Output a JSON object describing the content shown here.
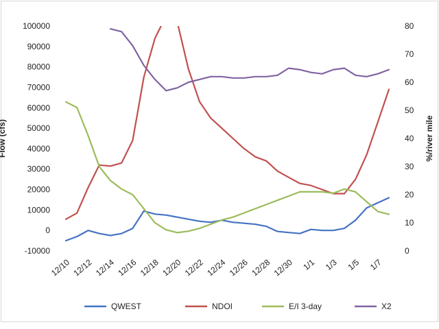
{
  "chart_data": {
    "type": "line",
    "title": "",
    "xlabel": "",
    "ylabel": "Flow (cfs)",
    "y2label": "%/river mile",
    "ylim": [
      -10000,
      100000
    ],
    "y2lim": [
      0,
      80
    ],
    "yticks": [
      "100000",
      "90000",
      "80000",
      "70000",
      "60000",
      "50000",
      "40000",
      "30000",
      "20000",
      "10000",
      "0",
      "-10000"
    ],
    "y2ticks": [
      "80",
      "70",
      "60",
      "50",
      "40",
      "30",
      "20",
      "10",
      "0"
    ],
    "x": [
      "12/10",
      "12/11",
      "12/12",
      "12/13",
      "12/14",
      "12/15",
      "12/16",
      "12/17",
      "12/18",
      "12/19",
      "12/20",
      "12/21",
      "12/22",
      "12/23",
      "12/24",
      "12/25",
      "12/26",
      "12/27",
      "12/28",
      "12/29",
      "12/30",
      "12/31",
      "1/1",
      "1/2",
      "1/3",
      "1/4",
      "1/5",
      "1/6",
      "1/7",
      "1/8"
    ],
    "xtick_labels": [
      "12/10",
      "12/12",
      "12/14",
      "12/16",
      "12/18",
      "12/20",
      "12/22",
      "12/24",
      "12/26",
      "12/28",
      "12/30",
      "1/1",
      "1/3",
      "1/5",
      "1/7"
    ],
    "grid": false,
    "legend": "bottom",
    "series": [
      {
        "name": "QWEST",
        "axis": "left",
        "color": "#4472C4",
        "values": [
          -5000,
          -3000,
          0,
          -1500,
          -2500,
          -1500,
          1000,
          9500,
          8000,
          7500,
          6500,
          5500,
          4500,
          4000,
          5000,
          4000,
          3500,
          3000,
          2000,
          -500,
          -1000,
          -1500,
          500,
          0,
          0,
          1000,
          5000,
          11000,
          13500,
          16000
        ]
      },
      {
        "name": "NDOI",
        "axis": "left",
        "color": "#C0504D",
        "values": [
          5500,
          8500,
          21000,
          32000,
          31500,
          33000,
          44000,
          75000,
          94000,
          105000,
          102000,
          79000,
          63000,
          55000,
          50000,
          45000,
          40000,
          36000,
          34000,
          29000,
          26000,
          23000,
          22000,
          20000,
          18000,
          18000,
          25000,
          37000,
          53000,
          69000
        ]
      },
      {
        "name": "E/I 3-day",
        "axis": "right",
        "color": "#9BBB59",
        "values": [
          53,
          51,
          41,
          30,
          25,
          22,
          20,
          15,
          10,
          7.5,
          6.5,
          7,
          8,
          9.5,
          11,
          12,
          13.5,
          15,
          16.5,
          18,
          19.5,
          21,
          21,
          21,
          20.5,
          22,
          21,
          17.5,
          14,
          13
        ]
      },
      {
        "name": "X2",
        "axis": "right",
        "color": "#8064A2",
        "values": [
          null,
          null,
          null,
          null,
          79,
          78,
          73,
          66,
          61,
          57,
          58,
          60,
          61,
          62,
          62,
          61.5,
          61.5,
          62,
          62,
          62.5,
          65,
          64.5,
          63.5,
          63,
          64.5,
          65,
          62.5,
          62,
          63,
          64.5
        ]
      }
    ]
  }
}
